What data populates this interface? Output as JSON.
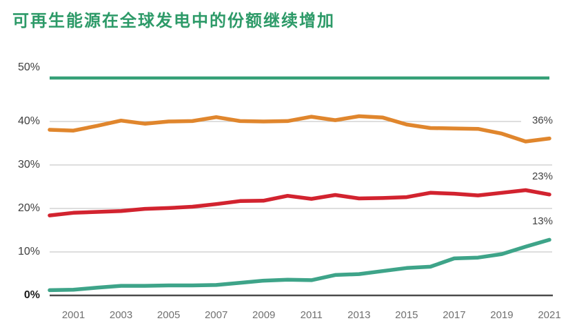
{
  "title": "可再生能源在全球发电中的份额继续增加",
  "colors": {
    "title": "#2d9a68",
    "top_rule": "#35a077",
    "grid": "#cbcbcb",
    "axis": "#4b4b4b",
    "y_tick_text": "#3e3e3e",
    "x_tick_text": "#707070",
    "end_label_text": "#3f3f3f",
    "orange": "#e0862d",
    "red": "#d2232f",
    "teal": "#3ea489"
  },
  "chart_data": {
    "type": "line",
    "title": "可再生能源在全球发电中的份额继续增加",
    "x": [
      2000,
      2001,
      2002,
      2003,
      2004,
      2005,
      2006,
      2007,
      2008,
      2009,
      2010,
      2011,
      2012,
      2013,
      2014,
      2015,
      2016,
      2017,
      2018,
      2019,
      2020,
      2021
    ],
    "x_tick_labels": [
      "2001",
      "2003",
      "2005",
      "2007",
      "2009",
      "2011",
      "2013",
      "2015",
      "2017",
      "2019",
      "2021"
    ],
    "y_tick_labels": [
      "0%",
      "10%",
      "20%",
      "30%",
      "40%",
      "50%"
    ],
    "xlim": [
      2000,
      2021
    ],
    "ylim": [
      0,
      50
    ],
    "grid": "horizontal",
    "legend": "none",
    "xlabel": "",
    "ylabel": "",
    "series": [
      {
        "name": "top-orange",
        "color": "#e0862d",
        "end_label": "36%",
        "values": [
          38.1,
          37.9,
          39.0,
          40.2,
          39.5,
          40.0,
          40.1,
          41.0,
          40.1,
          40.0,
          40.1,
          41.1,
          40.3,
          41.2,
          40.9,
          39.3,
          38.5,
          38.4,
          38.3,
          37.2,
          35.4,
          36.1
        ]
      },
      {
        "name": "middle-red",
        "color": "#d2232f",
        "end_label": "23%",
        "values": [
          18.4,
          19.0,
          19.2,
          19.4,
          19.9,
          20.1,
          20.4,
          21.0,
          21.7,
          21.8,
          22.9,
          22.2,
          23.1,
          22.3,
          22.4,
          22.6,
          23.6,
          23.4,
          23.0,
          23.6,
          24.2,
          23.2
        ]
      },
      {
        "name": "bottom-teal",
        "color": "#3ea489",
        "end_label": "13%",
        "values": [
          1.2,
          1.3,
          1.8,
          2.2,
          2.2,
          2.3,
          2.3,
          2.4,
          2.9,
          3.4,
          3.6,
          3.5,
          4.7,
          4.9,
          5.6,
          6.3,
          6.6,
          8.5,
          8.7,
          9.5,
          11.2,
          12.8
        ]
      }
    ]
  }
}
